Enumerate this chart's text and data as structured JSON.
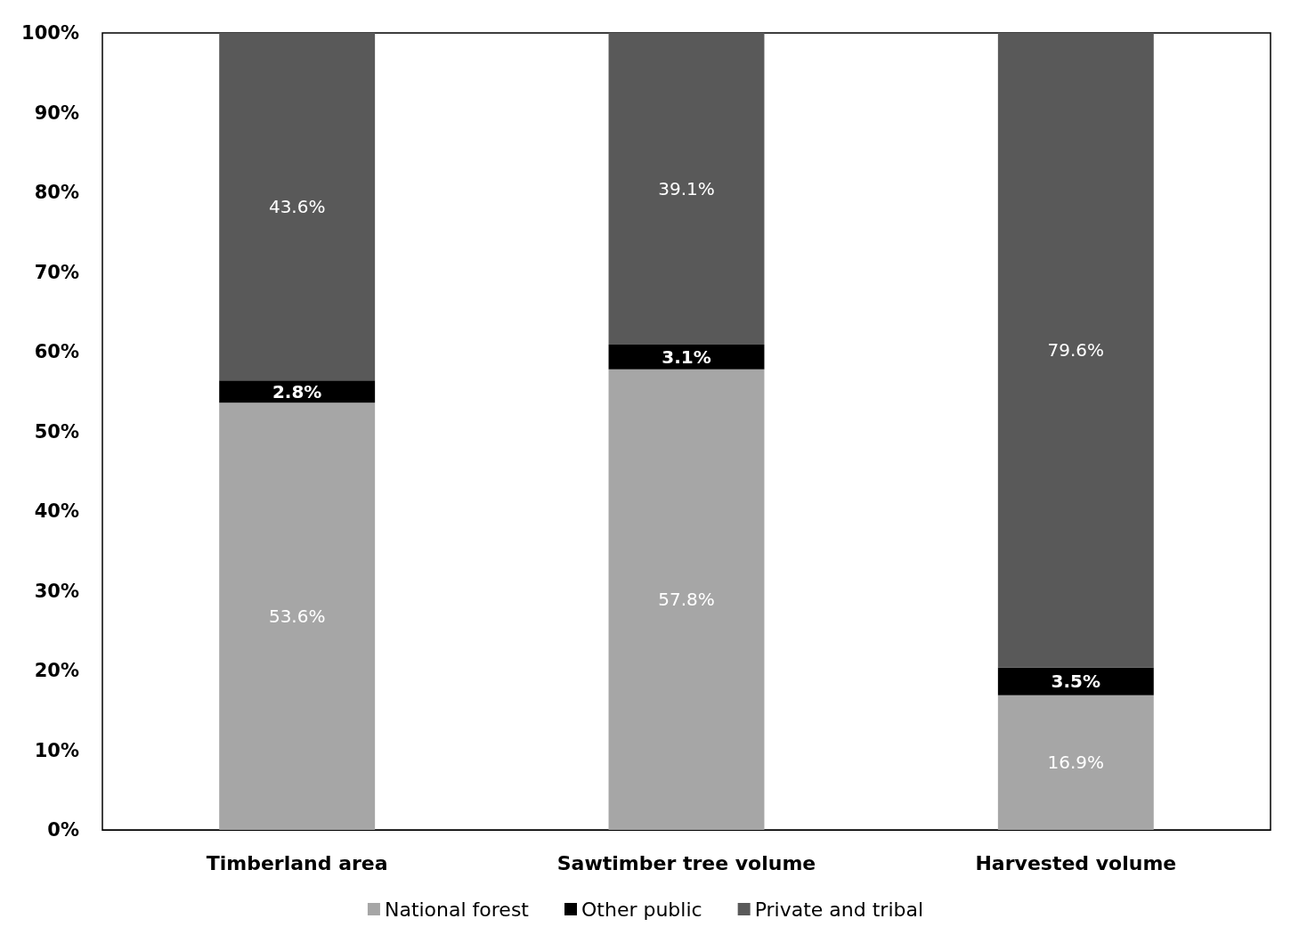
{
  "chart_data": {
    "type": "bar",
    "stacked": true,
    "categories": [
      "Timberland area",
      "Sawtimber tree volume",
      "Harvested volume"
    ],
    "series": [
      {
        "name": "National forest",
        "color": "#a6a6a6",
        "values": [
          53.6,
          57.8,
          16.9
        ],
        "value_labels": [
          "53.6%",
          "57.8%",
          "16.9%"
        ]
      },
      {
        "name": "Other public",
        "color": "#000000",
        "values": [
          2.8,
          3.1,
          3.5
        ],
        "value_labels": [
          "2.8%",
          "3.1%",
          "3.5%"
        ]
      },
      {
        "name": "Private and tribal",
        "color": "#595959",
        "values": [
          43.6,
          39.1,
          79.6
        ],
        "value_labels": [
          "43.6%",
          "39.1%",
          "79.6%"
        ]
      }
    ],
    "ylim": [
      0,
      100
    ],
    "yticks": [
      {
        "value": 0,
        "label": "0%"
      },
      {
        "value": 10,
        "label": "10%"
      },
      {
        "value": 20,
        "label": "20%"
      },
      {
        "value": 30,
        "label": "30%"
      },
      {
        "value": 40,
        "label": "40%"
      },
      {
        "value": 50,
        "label": "50%"
      },
      {
        "value": 60,
        "label": "60%"
      },
      {
        "value": 70,
        "label": "70%"
      },
      {
        "value": 80,
        "label": "80%"
      },
      {
        "value": 90,
        "label": "90%"
      },
      {
        "value": 100,
        "label": "100%"
      }
    ],
    "grid": false,
    "legend": "bottom"
  }
}
